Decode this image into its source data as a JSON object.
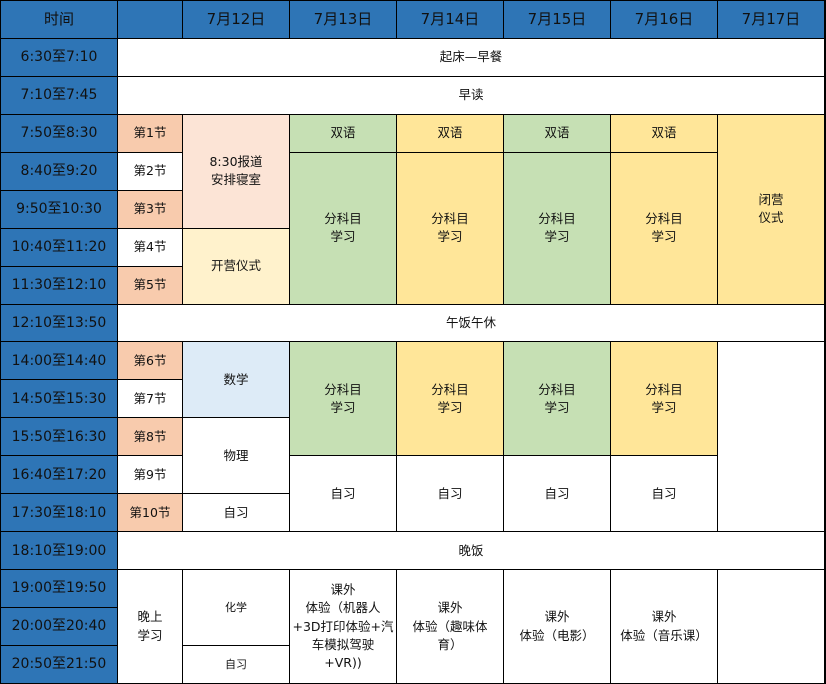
{
  "header": {
    "time": "时间",
    "period": "",
    "dates": [
      "7月12日",
      "7月13日",
      "7月14日",
      "7月15日",
      "7月16日",
      "7月17日"
    ]
  },
  "times": [
    "6:30至7:10",
    "7:10至7:45",
    "7:50至8:30",
    "8:40至9:20",
    "9:50至10:30",
    "10:40至11:20",
    "11:30至12:10",
    "12:10至13:50",
    "14:00至14:40",
    "14:50至15:30",
    "15:50至16:30",
    "16:40至17:20",
    "17:30至18:10",
    "18:10至19:00",
    "19:00至19:50",
    "20:00至20:40",
    "20:50至21:50"
  ],
  "periods": [
    "第1节",
    "第2节",
    "第3节",
    "第4节",
    "第5节",
    "第6节",
    "第7节",
    "第8节",
    "第9节",
    "第10节"
  ],
  "rows": {
    "wake": "起床—早餐",
    "reading": "早读",
    "lunch": "午饭午休",
    "dinner": "晚饭"
  },
  "d12": {
    "checkin": "8:30报道\n安排寝室",
    "opening": "开营仪式",
    "math": "数学",
    "physics": "物理",
    "self1": "自习",
    "chem": "化学",
    "self2": "自习",
    "evening_label": "晚上\n学习"
  },
  "morning": {
    "bilingual": "双语",
    "subject": "分科目\n学习"
  },
  "closing": "闭营\n仪式",
  "afternoon": {
    "subject": "分科目\n学习",
    "self": "自习"
  },
  "evening": [
    "课外\n体验（机器人\n+3D打印体验+汽\n车模拟驾驶\n+VR))",
    "课外\n体验（趣味体\n育）",
    "课外\n体验（电影）",
    "课外\n体验（音乐课）"
  ],
  "colors": {
    "header": "#2e75b6",
    "period_odd": "#f8cbad",
    "green": "#c6e0b4",
    "yellow": "#ffe699",
    "light_peach": "#fce4d6",
    "light_yellow": "#fff2cc",
    "light_blue": "#ddebf7"
  }
}
